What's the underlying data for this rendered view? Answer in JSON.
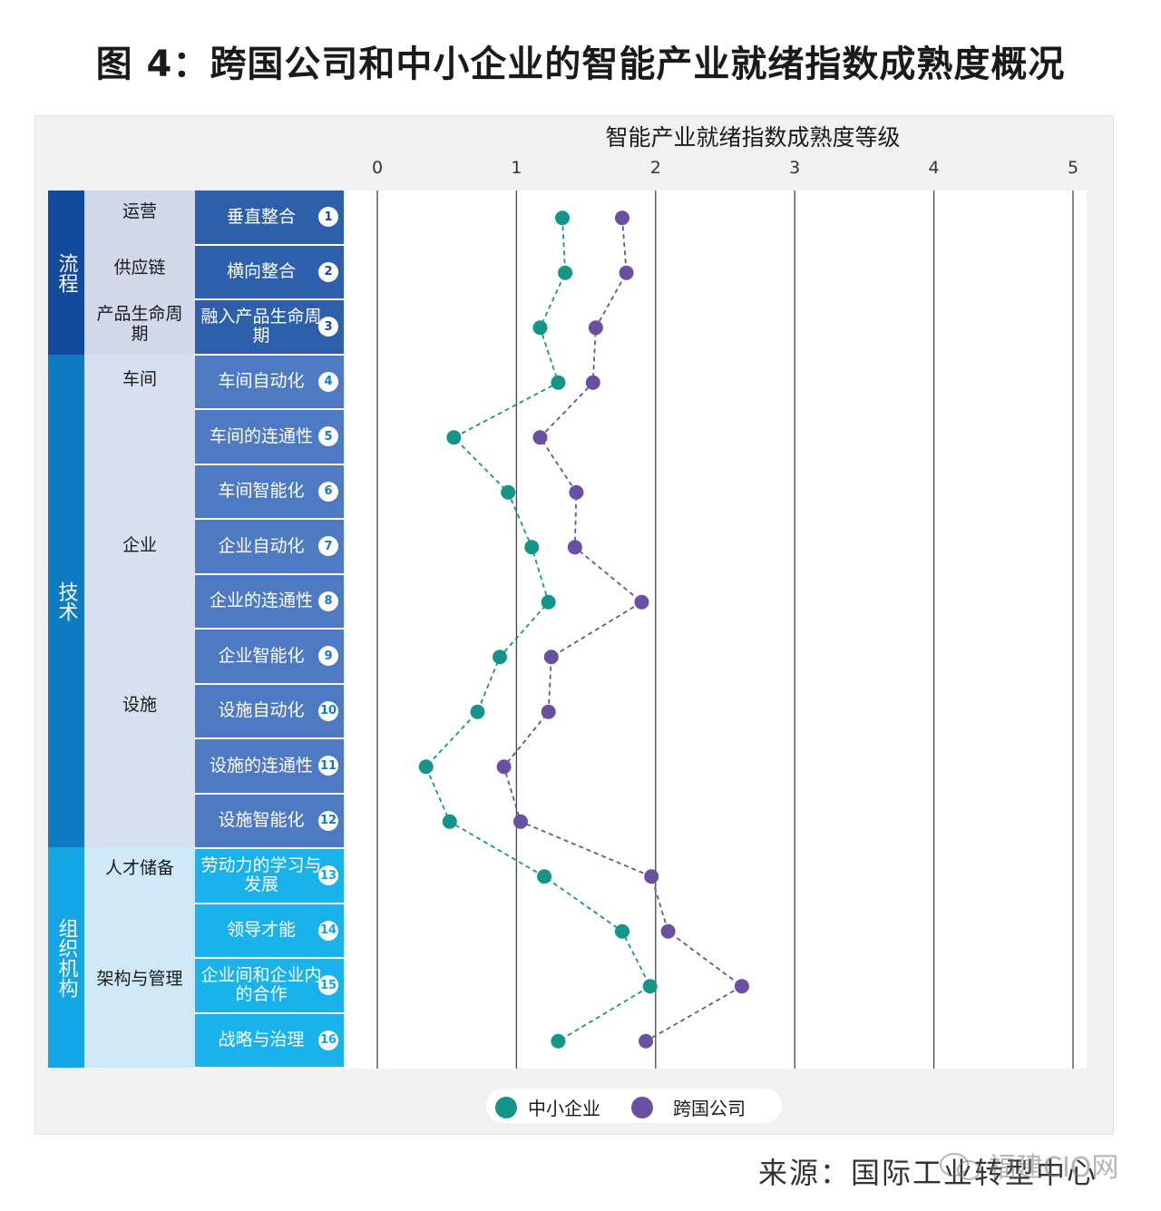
{
  "title": "图 4：跨国公司和中小企业的智能产业就绪指数成熟度概况",
  "source": "来源：国际工业转型中心",
  "watermark": "福建CIO网",
  "colors": {
    "sme": "#14958a",
    "mnc": "#6a4fa3",
    "process": "#124a9c",
    "tech": "#0f7bc3",
    "org": "#13a5e4",
    "process_sub": "#d2d8ea",
    "tech_sub": "#d6e0f0",
    "org_sub": "#cfe9f8",
    "process_row": "#2e5fab",
    "tech_row": "#4e7ac4",
    "org_row": "#19b2ea"
  },
  "categories": [
    {
      "label": "流程",
      "subs": [
        "运营",
        "供应链",
        "产品生命周期"
      ]
    },
    {
      "label": "技术",
      "subs": [
        "车间",
        "企业",
        "设施"
      ]
    },
    {
      "label": "组织机构",
      "subs": [
        "人才储备",
        "架构与管理"
      ]
    }
  ],
  "chart_data": {
    "type": "scatter",
    "title": "智能产业就绪指数成熟度等级",
    "xlim": [
      0,
      5
    ],
    "x_ticks": [
      "0",
      "1",
      "2",
      "3",
      "4",
      "5"
    ],
    "legend_position": "bottom",
    "categories": [
      {
        "num": "1",
        "label": "垂直整合"
      },
      {
        "num": "2",
        "label": "横向整合"
      },
      {
        "num": "3",
        "label": "融入产品生命周期"
      },
      {
        "num": "4",
        "label": "车间自动化"
      },
      {
        "num": "5",
        "label": "车间的连通性"
      },
      {
        "num": "6",
        "label": "车间智能化"
      },
      {
        "num": "7",
        "label": "企业自动化"
      },
      {
        "num": "8",
        "label": "企业的连通性"
      },
      {
        "num": "9",
        "label": "企业智能化"
      },
      {
        "num": "10",
        "label": "设施自动化"
      },
      {
        "num": "11",
        "label": "设施的连通性"
      },
      {
        "num": "12",
        "label": "设施智能化"
      },
      {
        "num": "13",
        "label": "劳动力的学习与发展"
      },
      {
        "num": "14",
        "label": "领导才能"
      },
      {
        "num": "15",
        "label": "企业间和企业内的合作"
      },
      {
        "num": "16",
        "label": "战略与治理"
      }
    ],
    "series": [
      {
        "name": "中小企业",
        "values": [
          1.33,
          1.35,
          1.17,
          1.3,
          0.55,
          0.94,
          1.11,
          1.23,
          0.88,
          0.72,
          0.35,
          0.52,
          1.2,
          1.76,
          1.96,
          1.3
        ]
      },
      {
        "name": "跨国公司",
        "values": [
          1.76,
          1.79,
          1.57,
          1.55,
          1.17,
          1.43,
          1.42,
          1.9,
          1.25,
          1.23,
          0.91,
          1.03,
          1.97,
          2.09,
          2.62,
          1.93
        ]
      }
    ]
  }
}
